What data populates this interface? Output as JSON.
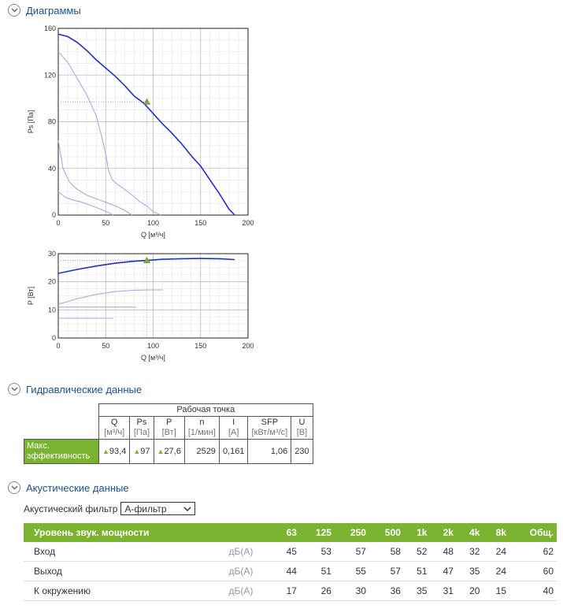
{
  "sections": {
    "diagrams": "Диаграммы",
    "hydraulic": "Гидравлические данные",
    "acoustic": "Акустические данные"
  },
  "chart_data": [
    {
      "type": "line",
      "xlabel": "Q [м³/ч]",
      "ylabel": "Ps [Па]",
      "xlim": [
        0,
        200
      ],
      "ylim": [
        0,
        160
      ],
      "x_ticks": [
        "0",
        "50",
        "100",
        "150",
        "200"
      ],
      "y_ticks": [
        "0",
        "40",
        "80",
        "120",
        "160"
      ],
      "grid": true,
      "series": [
        {
          "role": "main",
          "color": "#1f2fc8",
          "points": [
            [
              0,
              155
            ],
            [
              10,
              153
            ],
            [
              20,
              148
            ],
            [
              30,
              141
            ],
            [
              40,
              133
            ],
            [
              50,
              126
            ],
            [
              60,
              119
            ],
            [
              70,
              111
            ],
            [
              80,
              102
            ],
            [
              90,
              96
            ],
            [
              100,
              87
            ],
            [
              110,
              78
            ],
            [
              120,
              70
            ],
            [
              130,
              61
            ],
            [
              140,
              51
            ],
            [
              150,
              42
            ],
            [
              160,
              30
            ],
            [
              170,
              18
            ],
            [
              180,
              5
            ],
            [
              186,
              0
            ]
          ]
        },
        {
          "role": "secondary",
          "color": "#a8a8ec",
          "points": [
            [
              0,
              140
            ],
            [
              10,
              131
            ],
            [
              20,
              117
            ],
            [
              30,
              103
            ],
            [
              40,
              85
            ],
            [
              45,
              70
            ],
            [
              50,
              52
            ],
            [
              53,
              38
            ],
            [
              57,
              30
            ],
            [
              63,
              26
            ],
            [
              70,
              22
            ],
            [
              78,
              17
            ],
            [
              85,
              12
            ],
            [
              93,
              8
            ],
            [
              100,
              3
            ],
            [
              108,
              0
            ]
          ]
        },
        {
          "role": "secondary",
          "color": "#a8a8ec",
          "points": [
            [
              0,
              64
            ],
            [
              5,
              40
            ],
            [
              12,
              28
            ],
            [
              20,
              22
            ],
            [
              30,
              17
            ],
            [
              40,
              14
            ],
            [
              50,
              11
            ],
            [
              60,
              8
            ],
            [
              70,
              4
            ],
            [
              78,
              0
            ]
          ]
        },
        {
          "role": "secondary",
          "color": "#a8a8ec",
          "points": [
            [
              0,
              20
            ],
            [
              8,
              15
            ],
            [
              15,
              13
            ],
            [
              25,
              11
            ],
            [
              35,
              8
            ],
            [
              45,
              5
            ],
            [
              53,
              2
            ],
            [
              58,
              0
            ]
          ]
        }
      ],
      "operating_point": {
        "x": 93.4,
        "y": 97
      }
    },
    {
      "type": "line",
      "xlabel": "Q [м³/ч]",
      "ylabel": "P [Вт]",
      "xlim": [
        0,
        200
      ],
      "ylim": [
        0,
        30
      ],
      "x_ticks": [
        "0",
        "50",
        "100",
        "150",
        "200"
      ],
      "y_ticks": [
        "0",
        "10",
        "20",
        "30"
      ],
      "grid": true,
      "series": [
        {
          "role": "main",
          "color": "#1f2fc8",
          "points": [
            [
              0,
              23
            ],
            [
              20,
              24.4
            ],
            [
              40,
              25.6
            ],
            [
              60,
              26.6
            ],
            [
              80,
              27.3
            ],
            [
              93,
              27.6
            ],
            [
              110,
              28
            ],
            [
              130,
              28.2
            ],
            [
              150,
              28.3
            ],
            [
              170,
              28.2
            ],
            [
              186,
              27.9
            ]
          ]
        },
        {
          "role": "secondary",
          "color": "#a8a8ec",
          "points": [
            [
              0,
              12
            ],
            [
              20,
              14
            ],
            [
              40,
              15.5
            ],
            [
              60,
              16.5
            ],
            [
              80,
              17
            ],
            [
              100,
              17.1
            ],
            [
              110,
              17.1
            ]
          ]
        },
        {
          "role": "secondary",
          "color": "#a8a8ec",
          "points": [
            [
              0,
              11
            ],
            [
              40,
              11
            ],
            [
              80,
              11
            ],
            [
              82,
              11
            ]
          ]
        },
        {
          "role": "secondary",
          "color": "#a8a8ec",
          "points": [
            [
              0,
              7
            ],
            [
              30,
              7
            ],
            [
              58,
              7
            ]
          ]
        }
      ],
      "operating_point": {
        "x": 93.4,
        "y": 27.6
      }
    }
  ],
  "hydraulic": {
    "group_header": "Рабочая точка",
    "columns": [
      {
        "name": "Q",
        "unit": "[м³/ч]"
      },
      {
        "name": "Ps",
        "unit": "[Па]"
      },
      {
        "name": "P",
        "unit": "[Вт]"
      },
      {
        "name": "n",
        "unit": "[1/мин]"
      },
      {
        "name": "I",
        "unit": "[A]"
      },
      {
        "name": "SFP",
        "unit": "[кВт/м³/с]"
      },
      {
        "name": "U",
        "unit": "[В]"
      }
    ],
    "row_label": "Макс. эффективность",
    "values": [
      "93,4",
      "97",
      "27,6",
      "2529",
      "0,161",
      "1,06",
      "230"
    ],
    "marker_symbol": "▲"
  },
  "acoustic": {
    "filter_label": "Акустический фильтр",
    "filter_value": "А-фильтр",
    "header": "Уровень звук. мощности",
    "bands": [
      "63",
      "125",
      "250",
      "500",
      "1k",
      "2k",
      "4k",
      "8k",
      "Общ."
    ],
    "rows": [
      {
        "label": "Вход",
        "unit": "дБ(A)",
        "values": [
          "45",
          "53",
          "57",
          "58",
          "52",
          "48",
          "32",
          "24",
          "62"
        ]
      },
      {
        "label": "Выход",
        "unit": "дБ(A)",
        "values": [
          "44",
          "51",
          "55",
          "57",
          "51",
          "47",
          "35",
          "24",
          "60"
        ]
      },
      {
        "label": "К окружению",
        "unit": "дБ(A)",
        "values": [
          "17",
          "26",
          "30",
          "36",
          "35",
          "31",
          "20",
          "15",
          "40"
        ]
      }
    ]
  }
}
